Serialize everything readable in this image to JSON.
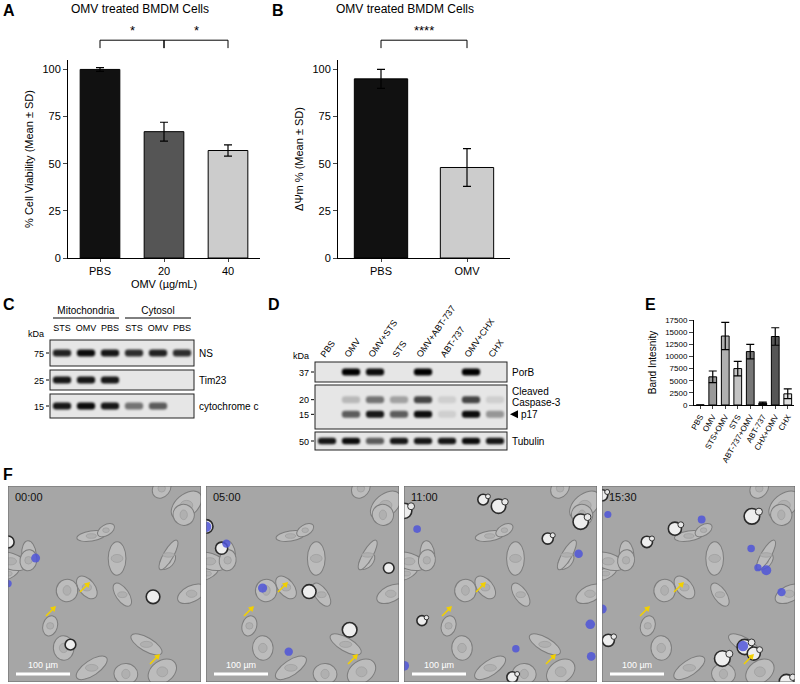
{
  "chart_data": [
    {
      "panel": "A",
      "type": "bar",
      "title": "OMV treated BMDM Cells",
      "categories": [
        "PBS",
        "20",
        "40"
      ],
      "values": [
        100,
        67,
        57
      ],
      "errors": [
        1,
        5,
        3
      ],
      "colors": [
        "#111111",
        "#555555",
        "#cccccc"
      ],
      "xlabel": "OMV (µg/mL)",
      "ylabel": "% Cell Viability (Mean ± SD)",
      "ylim": [
        0,
        105
      ],
      "yticks": [
        0,
        25,
        50,
        75,
        100
      ],
      "grid": false,
      "annotations": [
        {
          "from": "PBS",
          "to": "20",
          "text": "*"
        },
        {
          "from": "20",
          "to": "40",
          "text": "*"
        }
      ]
    },
    {
      "panel": "B",
      "type": "bar",
      "title": "OMV treated BMDM Cells",
      "categories": [
        "PBS",
        "OMV"
      ],
      "values": [
        95,
        48
      ],
      "errors": [
        5,
        10
      ],
      "colors": [
        "#111111",
        "#cccccc"
      ],
      "ylabel": "ΔΨm % (Mean ± SD)",
      "ylim": [
        0,
        105
      ],
      "yticks": [
        0,
        25,
        50,
        75,
        100
      ],
      "grid": false,
      "annotations": [
        {
          "from": "PBS",
          "to": "OMV",
          "text": "****"
        }
      ]
    },
    {
      "panel": "E",
      "type": "bar",
      "categories": [
        "PBS",
        "OMV",
        "STS+OMV",
        "STS",
        "ABT-737+OMV",
        "ABT-737",
        "CHX+OMV",
        "CHX"
      ],
      "values": [
        0,
        5800,
        14200,
        7500,
        11000,
        400,
        14100,
        2300
      ],
      "errors": [
        0,
        1200,
        2800,
        1500,
        1500,
        200,
        1800,
        1000
      ],
      "colors": [
        "#ffffff",
        "#9a9a9a",
        "#b0b0b0",
        "#c4c4c4",
        "#777777",
        "#333333",
        "#555555",
        "#e0e0e0"
      ],
      "ylabel": "Band Intesnity",
      "ylim": [
        0,
        17500
      ],
      "yticks": [
        0,
        2500,
        5000,
        7500,
        10000,
        12500,
        15000,
        17500
      ],
      "grid": false
    }
  ],
  "blots": [
    {
      "panel": "C",
      "unit": "kDa",
      "groups": [
        {
          "label": "Mitochondria",
          "lanes": [
            "STS",
            "OMV",
            "PBS"
          ]
        },
        {
          "label": "Cytosol",
          "lanes": [
            "STS",
            "OMV",
            "PBS"
          ]
        }
      ],
      "rows": [
        {
          "label": "NS",
          "markers": [
            75
          ],
          "bands": [
            [
              0.85,
              0.95,
              0.9,
              0.8,
              0.85,
              0.8
            ]
          ]
        },
        {
          "label": "Tim23",
          "markers": [
            25
          ],
          "bands": [
            [
              0.9,
              0.9,
              0.9,
              0,
              0,
              0
            ]
          ]
        },
        {
          "label": "cytochrome c",
          "markers": [
            15
          ],
          "bands": [
            [
              0.9,
              0.95,
              0.9,
              0.5,
              0.6,
              0
            ]
          ]
        }
      ]
    },
    {
      "panel": "D",
      "unit": "kDa",
      "lanes": [
        "PBS",
        "OMV",
        "OMV+STS",
        "STS",
        "OMV+ABT-737",
        "ABT-737",
        "OMV+CHX",
        "CHX"
      ],
      "rows": [
        {
          "label": "PorB",
          "markers": [
            37
          ],
          "bands": [
            [
              0,
              1,
              0.95,
              0,
              1,
              0,
              1,
              0
            ]
          ]
        },
        {
          "label": [
            "Cleaved",
            "Caspase-3"
          ],
          "markers": [
            20,
            15
          ],
          "arrow_label": "p17",
          "bands": [
            [
              0,
              0.2,
              0.5,
              0.3,
              0.7,
              0.1,
              0.7,
              0.1
            ],
            [
              0,
              0.6,
              0.9,
              0.6,
              0.95,
              0.1,
              0.95,
              0.35
            ]
          ]
        },
        {
          "label": "Tubulin",
          "markers": [
            50
          ],
          "bands": [
            [
              0.9,
              0.95,
              0.6,
              0.9,
              0.9,
              0.9,
              0.95,
              0.9
            ]
          ]
        }
      ]
    }
  ],
  "time_lapse": {
    "panel": "F",
    "frames": [
      "00:00",
      "05:00",
      "11:00",
      "15:30"
    ],
    "scale_bar": "100 µm"
  }
}
